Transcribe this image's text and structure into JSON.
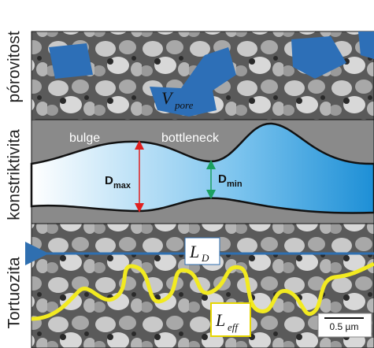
{
  "labels": {
    "porosity": "pórovitost",
    "constrictivity": "konstriktivita",
    "tortuosity": "Tortuozita"
  },
  "porosity_panel": {
    "volume": {
      "symbol": "V",
      "subscript": "pore"
    }
  },
  "constrictivity_panel": {
    "bulge": "bulge",
    "bottleneck": "bottleneck",
    "d_max": {
      "symbol": "D",
      "subscript": "max"
    },
    "d_min": {
      "symbol": "D",
      "subscript": "min"
    }
  },
  "tortuosity_panel": {
    "direct_length": {
      "symbol": "L",
      "subscript": "D"
    },
    "effective_length": {
      "symbol": "L",
      "subscript": "eff"
    },
    "scale_bar": "0.5 µm"
  }
}
